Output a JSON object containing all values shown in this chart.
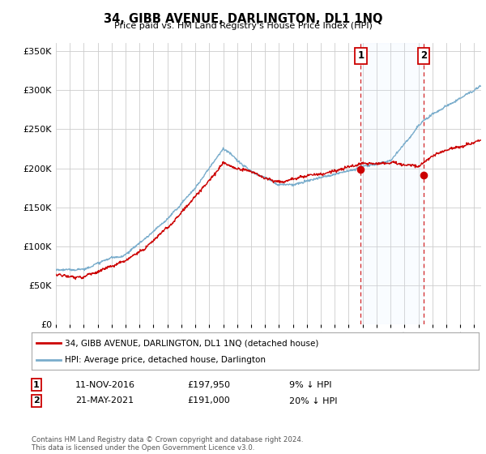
{
  "title": "34, GIBB AVENUE, DARLINGTON, DL1 1NQ",
  "subtitle": "Price paid vs. HM Land Registry's House Price Index (HPI)",
  "legend_label_red": "34, GIBB AVENUE, DARLINGTON, DL1 1NQ (detached house)",
  "legend_label_blue": "HPI: Average price, detached house, Darlington",
  "annotation1_date": "11-NOV-2016",
  "annotation1_price": "£197,950",
  "annotation1_hpi": "9% ↓ HPI",
  "annotation1_year": 2016.87,
  "annotation1_value": 197950,
  "annotation2_date": "21-MAY-2021",
  "annotation2_price": "£191,000",
  "annotation2_hpi": "20% ↓ HPI",
  "annotation2_year": 2021.38,
  "annotation2_value": 191000,
  "footer": "Contains HM Land Registry data © Crown copyright and database right 2024.\nThis data is licensed under the Open Government Licence v3.0.",
  "ylim": [
    0,
    360000
  ],
  "xlim_start": 1995.0,
  "xlim_end": 2025.5,
  "red_color": "#cc0000",
  "blue_color": "#7aadcc",
  "background_color": "#ffffff",
  "grid_color": "#cccccc",
  "annotation_vline_color": "#cc0000",
  "annotation_box_color": "#cc0000",
  "span_color": "#ddeeff"
}
